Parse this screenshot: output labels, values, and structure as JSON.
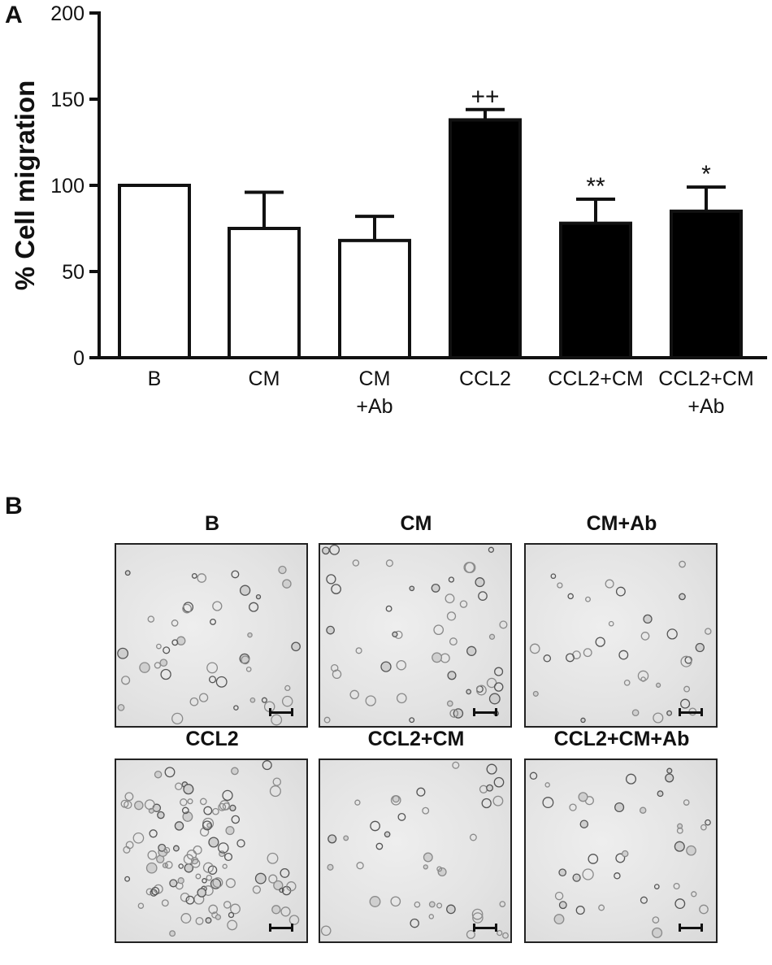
{
  "panel_a": {
    "letter": "A"
  },
  "panel_b": {
    "letter": "B",
    "images": [
      {
        "title": "B"
      },
      {
        "title": "CM"
      },
      {
        "title": "CM+Ab"
      },
      {
        "title": "CCL2"
      },
      {
        "title": "CCL2+CM"
      },
      {
        "title": "CCL2+CM+Ab"
      }
    ]
  },
  "chart_data": {
    "type": "bar",
    "title": "",
    "xlabel": "",
    "ylabel": "% Cell migration",
    "ylim": [
      0,
      200
    ],
    "yticks": [
      0,
      50,
      100,
      150,
      200
    ],
    "categories": [
      [
        "B"
      ],
      [
        "CM"
      ],
      [
        "CM",
        "+Ab"
      ],
      [
        "CCL2"
      ],
      [
        "CCL2+CM"
      ],
      [
        "CCL2+CM",
        "+Ab"
      ]
    ],
    "values": [
      100,
      75,
      68,
      138,
      78,
      85
    ],
    "errors": [
      0,
      21,
      14,
      6,
      14,
      14
    ],
    "fills": [
      "#ffffff",
      "#ffffff",
      "#ffffff",
      "#000000",
      "#000000",
      "#000000"
    ],
    "annotations": [
      "",
      "",
      "",
      "++",
      "**",
      "*"
    ],
    "grid": false
  }
}
